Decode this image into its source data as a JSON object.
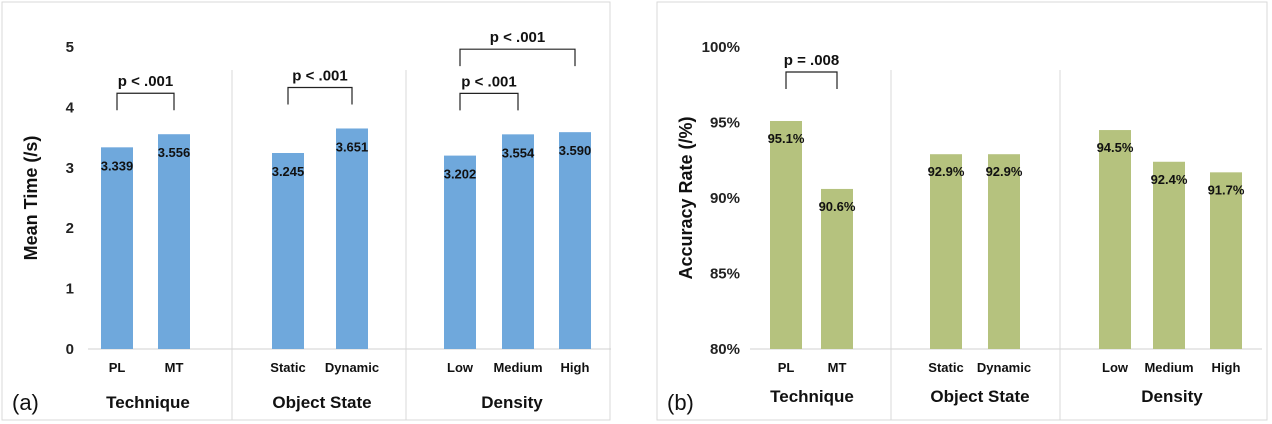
{
  "chart_data": [
    {
      "type": "bar",
      "panel_label": "(a)",
      "ylabel": "Mean Time (/s)",
      "ylim": [
        0,
        5
      ],
      "yticks": [
        "0",
        "1",
        "2",
        "3",
        "4",
        "5"
      ],
      "bar_color": "#6fa8dc",
      "groups": [
        {
          "name": "Technique",
          "categories": [
            "PL",
            "MT"
          ],
          "values": [
            3.339,
            3.556
          ],
          "labels": [
            "3.339",
            "3.556"
          ],
          "brackets": [
            {
              "from": 0,
              "to": 1,
              "text": "p < .001",
              "level": 0
            }
          ]
        },
        {
          "name": "Object State",
          "categories": [
            "Static",
            "Dynamic"
          ],
          "values": [
            3.245,
            3.651
          ],
          "labels": [
            "3.245",
            "3.651"
          ],
          "brackets": [
            {
              "from": 0,
              "to": 1,
              "text": "p < .001",
              "level": 0
            }
          ]
        },
        {
          "name": "Density",
          "categories": [
            "Low",
            "Medium",
            "High"
          ],
          "values": [
            3.202,
            3.554,
            3.59
          ],
          "labels": [
            "3.202",
            "3.554",
            "3.590"
          ],
          "brackets": [
            {
              "from": 0,
              "to": 1,
              "text": "p < .001",
              "level": 0
            },
            {
              "from": 0,
              "to": 2,
              "text": "p < .001",
              "level": 1
            }
          ]
        }
      ]
    },
    {
      "type": "bar",
      "panel_label": "(b)",
      "ylabel": "Accuracy Rate (/%)",
      "ylim": [
        80,
        100
      ],
      "yticks": [
        "80%",
        "85%",
        "90%",
        "95%",
        "100%"
      ],
      "bar_color": "#b5c27e",
      "groups": [
        {
          "name": "Technique",
          "categories": [
            "PL",
            "MT"
          ],
          "values": [
            95.1,
            90.6
          ],
          "labels": [
            "95.1%",
            "90.6%"
          ],
          "brackets": [
            {
              "from": 0,
              "to": 1,
              "text": "p = .008",
              "level": 0
            }
          ]
        },
        {
          "name": "Object State",
          "categories": [
            "Static",
            "Dynamic"
          ],
          "values": [
            92.9,
            92.9
          ],
          "labels": [
            "92.9%",
            "92.9%"
          ],
          "brackets": []
        },
        {
          "name": "Density",
          "categories": [
            "Low",
            "Medium",
            "High"
          ],
          "values": [
            94.5,
            92.4,
            91.7
          ],
          "labels": [
            "94.5%",
            "92.4%",
            "91.7%"
          ],
          "brackets": []
        }
      ]
    }
  ]
}
